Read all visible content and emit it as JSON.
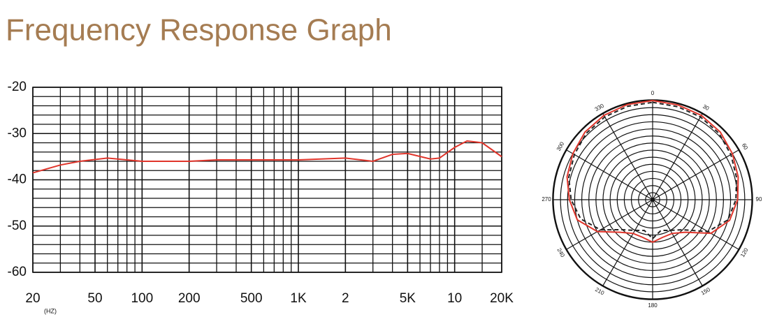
{
  "chart_data": [
    {
      "type": "line",
      "title": "Frequency Response Graph",
      "x_label": "(HZ)",
      "xscale": "log",
      "xlim": [
        20,
        20000
      ],
      "xticks": [
        20,
        50,
        100,
        200,
        500,
        {
          "value": 1000,
          "label": "1K"
        },
        {
          "value": 2000,
          "label": "2"
        },
        {
          "value": 5000,
          "label": "5K"
        },
        {
          "value": 10000,
          "label": "10"
        },
        {
          "value": 20000,
          "label": "20K"
        }
      ],
      "minor_xticks": [
        30,
        40,
        60,
        70,
        80,
        90,
        300,
        400,
        600,
        700,
        800,
        900,
        3000,
        4000,
        6000,
        7000,
        8000,
        9000,
        15000
      ],
      "ylim": [
        -60,
        -20
      ],
      "yticks": [
        -20,
        -30,
        -40,
        -50,
        -60
      ],
      "minor_yticks": [
        -22,
        -24,
        -26,
        -28,
        -32,
        -34,
        -36,
        -38,
        -42,
        -44,
        -46,
        -48,
        -52,
        -54,
        -56,
        -58
      ],
      "grid": true,
      "color": "#e0352b",
      "x": [
        20,
        30,
        40,
        60,
        100,
        200,
        300,
        1000,
        2000,
        3000,
        4000,
        5000,
        7000,
        8000,
        10000,
        12000,
        15000,
        20000
      ],
      "values": [
        -38.5,
        -36.8,
        -36,
        -35.3,
        -36,
        -36,
        -35.7,
        -35.7,
        -35.3,
        -36,
        -34.5,
        -34.3,
        -35.5,
        -35.3,
        -33,
        -31.6,
        -32,
        -35
      ]
    },
    {
      "type": "polar",
      "theta": [
        0,
        15,
        30,
        45,
        60,
        75,
        90,
        105,
        120,
        135,
        150,
        165,
        180,
        195,
        210,
        225,
        240,
        255,
        270,
        285,
        300,
        315,
        330,
        345,
        360
      ],
      "thetaticks": [
        0,
        30,
        60,
        90,
        120,
        150,
        180,
        210,
        240,
        270,
        300,
        330
      ],
      "rlim": [
        -28,
        0
      ],
      "rticks": [
        -26,
        -24,
        -22,
        -20,
        -18,
        -16,
        -14,
        -12,
        -10,
        -8,
        -6,
        -4,
        -2,
        0
      ],
      "series": [
        {
          "color": "#e0352b",
          "line_style": "solid",
          "values": [
            0,
            -0.3,
            -0.5,
            -1,
            -2,
            -3,
            -4,
            -5.5,
            -9,
            -15,
            -17,
            -17,
            -16,
            -17,
            -17,
            -15,
            -10,
            -6,
            -4.5,
            -3,
            -2,
            -1,
            -0.5,
            -0.2,
            0
          ]
        },
        {
          "color": "#222222",
          "line_style": "dashed",
          "values": [
            -0.5,
            -0.8,
            -1,
            -1.5,
            -2.5,
            -3.5,
            -4.5,
            -6,
            -10,
            -16,
            -18,
            -19,
            -17,
            -19,
            -18,
            -16,
            -11,
            -7,
            -5,
            -3.5,
            -2.5,
            -1.5,
            -1,
            -0.7,
            -0.5
          ]
        }
      ]
    }
  ]
}
